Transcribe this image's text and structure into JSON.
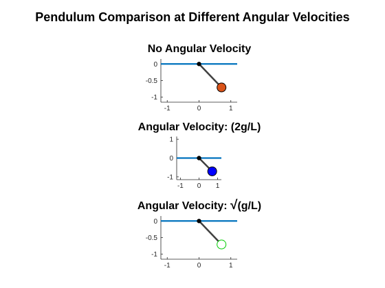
{
  "figure": {
    "title": "Pendulum Comparison at Different Angular Velocities"
  },
  "chart_data": [
    {
      "type": "line",
      "title": "No Angular Velocity",
      "xlim": [
        -1.2,
        1.2
      ],
      "ylim": [
        -1.15,
        0.15
      ],
      "xticks": [
        -1,
        0,
        1
      ],
      "yticks": [
        0,
        -0.5,
        -1
      ],
      "ytick_labels": [
        "0",
        "-0.5",
        "-1"
      ],
      "ceiling": {
        "x": [
          -1.2,
          1.2
        ],
        "y": [
          0,
          0
        ],
        "color": "#0072BD"
      },
      "pivot": {
        "x": 0,
        "y": 0
      },
      "bob": {
        "x": 0.707,
        "y": -0.707,
        "fill": "#D95319",
        "edge": "#000000"
      },
      "rod_color": "#404040"
    },
    {
      "type": "line",
      "title": "Angular Velocity: (2g/L)",
      "xlim": [
        -1.2,
        1.2
      ],
      "ylim": [
        -1.15,
        1.15
      ],
      "xticks": [
        -1,
        0,
        1
      ],
      "yticks": [
        1,
        0,
        -1
      ],
      "ytick_labels": [
        "1",
        "0",
        "-1"
      ],
      "ceiling": {
        "x": [
          -1.2,
          1.2
        ],
        "y": [
          0,
          0
        ],
        "color": "#0072BD"
      },
      "pivot": {
        "x": 0,
        "y": 0
      },
      "bob": {
        "x": 0.707,
        "y": -0.707,
        "fill": "#0000FF",
        "edge": "#000000"
      },
      "rod_color": "#404040"
    },
    {
      "type": "line",
      "title_prefix": "Angular Velocity: ",
      "title_symbol": "√",
      "title_suffix": "(g/L)",
      "xlim": [
        -1.2,
        1.2
      ],
      "ylim": [
        -1.15,
        0.15
      ],
      "xticks": [
        -1,
        0,
        1
      ],
      "yticks": [
        0,
        -0.5,
        -1
      ],
      "ytick_labels": [
        "0",
        "-0.5",
        "-1"
      ],
      "ceiling": {
        "x": [
          -1.2,
          1.2
        ],
        "y": [
          0,
          0
        ],
        "color": "#0072BD"
      },
      "pivot": {
        "x": 0,
        "y": 0
      },
      "bob": {
        "x": 0.707,
        "y": -0.707,
        "fill": "#FFFFFF",
        "edge": "#00CC00"
      },
      "rod_color": "#404040"
    }
  ]
}
